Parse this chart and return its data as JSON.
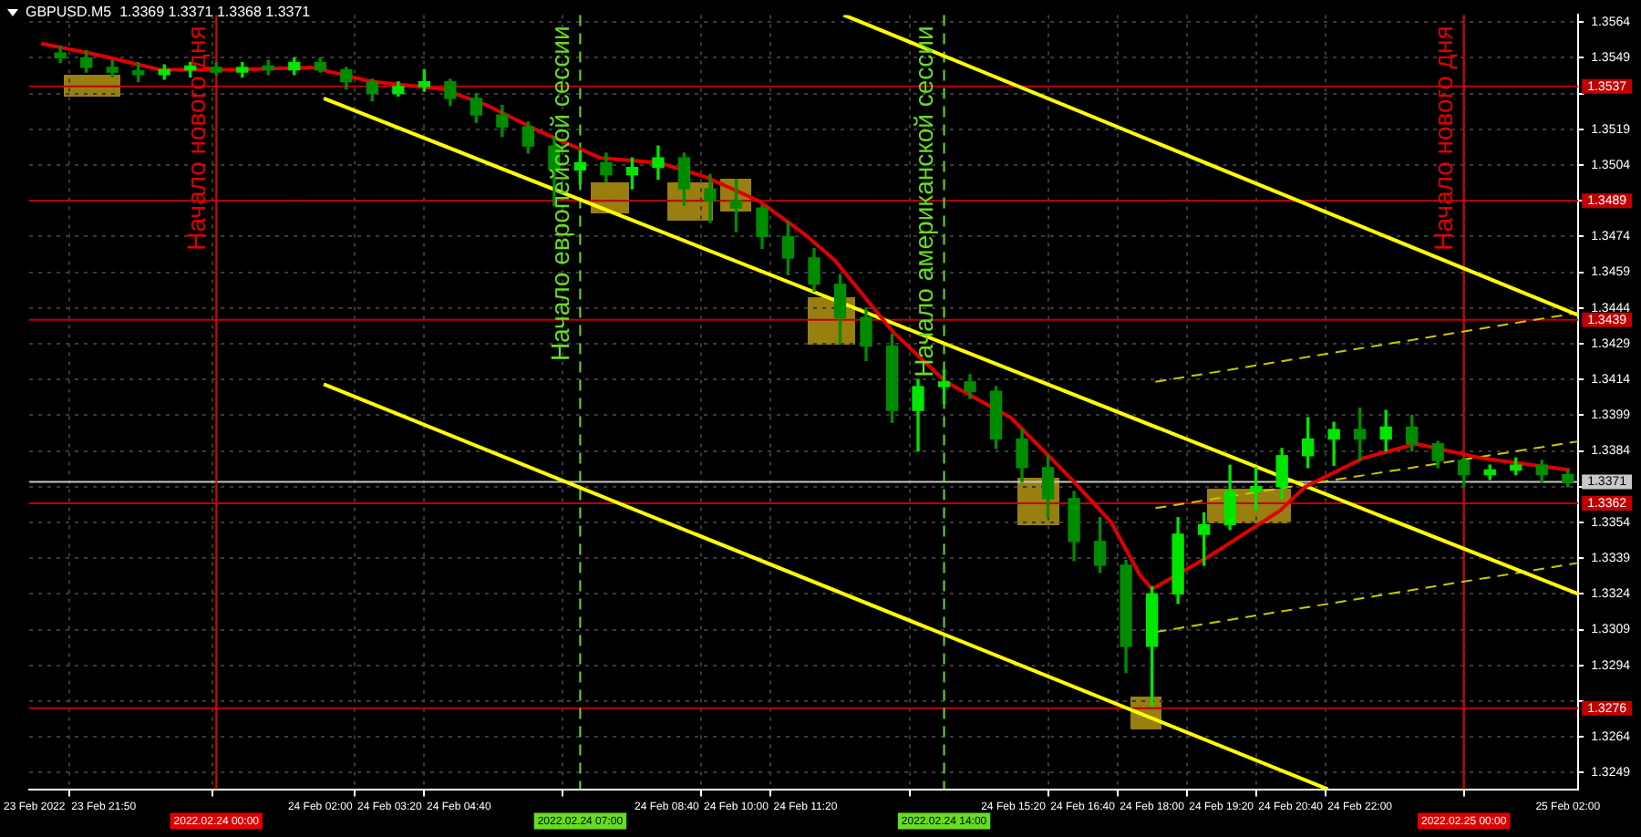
{
  "chart_data": {
    "type": "candlestick",
    "title": "GBPUSD.M5  1.3369 1.3371 1.3368 1.3371",
    "colors": [
      "#008c00",
      "#008c00",
      "#008c00",
      "#008c00",
      "#00e600",
      "#00e600",
      "#008c00",
      "#00e600",
      "#008c00",
      "#00e600",
      "#008c00",
      "#008c00",
      "#008c00",
      "#00e600",
      "#00e600",
      "#008c00",
      "#008c00",
      "#008c00",
      "#008c00",
      "#008c00",
      "#00e600",
      "#008c00",
      "#00e600",
      "#00e600",
      "#008c00",
      "#008c00",
      "#008c00",
      "#008c00",
      "#008c00",
      "#008c00",
      "#008c00",
      "#008c00",
      "#008c00",
      "#00e600",
      "#00e600",
      "#008c00",
      "#008c00",
      "#008c00",
      "#008c00",
      "#008c00",
      "#008c00",
      "#008c00",
      "#00e600",
      "#00e600",
      "#00e600",
      "#00e600",
      "#00e600",
      "#00e600",
      "#00e600",
      "#00e600",
      "#008c00",
      "#00e600",
      "#008c00",
      "#008c00",
      "#008c00",
      "#00e600",
      "#00e600",
      "#008c00",
      "#008c00"
    ],
    "marker": "none",
    "grid": true,
    "legend": false,
    "x": [
      "2022-02-23T21:00",
      "2022-02-23T21:30",
      "2022-02-23T22:00",
      "2022-02-23T22:30",
      "2022-02-23T23:00",
      "2022-02-23T23:30",
      "2022-02-24T00:00",
      "2022-02-24T00:30",
      "2022-02-24T01:00",
      "2022-02-24T01:30",
      "2022-02-24T02:00",
      "2022-02-24T02:30",
      "2022-02-24T03:00",
      "2022-02-24T03:30",
      "2022-02-24T04:00",
      "2022-02-24T04:30",
      "2022-02-24T05:00",
      "2022-02-24T05:30",
      "2022-02-24T06:00",
      "2022-02-24T06:30",
      "2022-02-24T07:00",
      "2022-02-24T07:30",
      "2022-02-24T08:00",
      "2022-02-24T08:30",
      "2022-02-24T09:00",
      "2022-02-24T09:30",
      "2022-02-24T10:00",
      "2022-02-24T10:30",
      "2022-02-24T11:00",
      "2022-02-24T11:30",
      "2022-02-24T12:00",
      "2022-02-24T12:30",
      "2022-02-24T13:00",
      "2022-02-24T13:30",
      "2022-02-24T14:00",
      "2022-02-24T14:30",
      "2022-02-24T15:00",
      "2022-02-24T15:30",
      "2022-02-24T16:00",
      "2022-02-24T16:30",
      "2022-02-24T17:00",
      "2022-02-24T17:30",
      "2022-02-24T18:00",
      "2022-02-24T18:30",
      "2022-02-24T19:00",
      "2022-02-24T19:30",
      "2022-02-24T20:00",
      "2022-02-24T20:30",
      "2022-02-24T21:00",
      "2022-02-24T21:30",
      "2022-02-24T22:00",
      "2022-02-24T22:30",
      "2022-02-24T23:00",
      "2022-02-24T23:30",
      "2022-02-25T00:00",
      "2022-02-25T00:30",
      "2022-02-25T01:00",
      "2022-02-25T01:30",
      "2022-02-25T02:00"
    ],
    "ohlc": [
      [
        1.3551,
        1.3554,
        1.3547,
        1.3549
      ],
      [
        1.3549,
        1.3552,
        1.3543,
        1.3545
      ],
      [
        1.3545,
        1.3548,
        1.3541,
        1.3543
      ],
      [
        1.3543,
        1.3547,
        1.3539,
        1.3542
      ],
      [
        1.3542,
        1.3546,
        1.354,
        1.3544
      ],
      [
        1.3544,
        1.3547,
        1.3541,
        1.3545
      ],
      [
        1.3545,
        1.3547,
        1.3542,
        1.3543
      ],
      [
        1.3543,
        1.3547,
        1.3541,
        1.3545
      ],
      [
        1.3545,
        1.3548,
        1.3542,
        1.3544
      ],
      [
        1.3544,
        1.3549,
        1.3542,
        1.3547
      ],
      [
        1.3547,
        1.3549,
        1.3543,
        1.3544
      ],
      [
        1.3544,
        1.3545,
        1.3536,
        1.3539
      ],
      [
        1.3539,
        1.354,
        1.3531,
        1.3534
      ],
      [
        1.3534,
        1.3539,
        1.3533,
        1.3537
      ],
      [
        1.3537,
        1.3544,
        1.3535,
        1.3539
      ],
      [
        1.3539,
        1.354,
        1.3529,
        1.3532
      ],
      [
        1.3532,
        1.3534,
        1.3522,
        1.3525
      ],
      [
        1.3525,
        1.3529,
        1.3516,
        1.352
      ],
      [
        1.352,
        1.3522,
        1.3509,
        1.3512
      ],
      [
        1.3512,
        1.3516,
        1.3487,
        1.3502
      ],
      [
        1.3502,
        1.351,
        1.3496,
        1.3505
      ],
      [
        1.3505,
        1.3509,
        1.3497,
        1.35
      ],
      [
        1.35,
        1.3507,
        1.3494,
        1.3503
      ],
      [
        1.3503,
        1.3512,
        1.3498,
        1.3507
      ],
      [
        1.3507,
        1.3509,
        1.3487,
        1.3494
      ],
      [
        1.3494,
        1.35,
        1.348,
        1.3489
      ],
      [
        1.3489,
        1.3498,
        1.3476,
        1.3486
      ],
      [
        1.3486,
        1.3487,
        1.3469,
        1.3474
      ],
      [
        1.3474,
        1.348,
        1.3458,
        1.3465
      ],
      [
        1.3465,
        1.3469,
        1.3451,
        1.3454
      ],
      [
        1.3454,
        1.3458,
        1.3429,
        1.344
      ],
      [
        1.344,
        1.3444,
        1.3422,
        1.3428
      ],
      [
        1.3428,
        1.3433,
        1.3396,
        1.3401
      ],
      [
        1.3401,
        1.3414,
        1.3384,
        1.3411
      ],
      [
        1.3411,
        1.3418,
        1.3404,
        1.3413
      ],
      [
        1.3413,
        1.3416,
        1.3406,
        1.3409
      ],
      [
        1.3409,
        1.3411,
        1.3385,
        1.3389
      ],
      [
        1.3389,
        1.3393,
        1.3371,
        1.3377
      ],
      [
        1.3377,
        1.3382,
        1.3356,
        1.3364
      ],
      [
        1.3364,
        1.3367,
        1.3338,
        1.3346
      ],
      [
        1.3346,
        1.3356,
        1.3333,
        1.3336
      ],
      [
        1.3336,
        1.3338,
        1.3291,
        1.3302
      ],
      [
        1.3302,
        1.3327,
        1.3277,
        1.3324
      ],
      [
        1.3324,
        1.3356,
        1.332,
        1.3349
      ],
      [
        1.3349,
        1.3358,
        1.3336,
        1.3353
      ],
      [
        1.3353,
        1.3378,
        1.3351,
        1.3367
      ],
      [
        1.3367,
        1.3377,
        1.3359,
        1.3369
      ],
      [
        1.3369,
        1.3385,
        1.3364,
        1.3382
      ],
      [
        1.3382,
        1.3398,
        1.3377,
        1.3389
      ],
      [
        1.3389,
        1.3396,
        1.3378,
        1.3393
      ],
      [
        1.3393,
        1.3402,
        1.338,
        1.3389
      ],
      [
        1.3389,
        1.3401,
        1.3384,
        1.3394
      ],
      [
        1.3394,
        1.3399,
        1.3384,
        1.3387
      ],
      [
        1.3387,
        1.3388,
        1.3377,
        1.338
      ],
      [
        1.338,
        1.3381,
        1.3369,
        1.3374
      ],
      [
        1.3374,
        1.3378,
        1.3372,
        1.3376
      ],
      [
        1.3376,
        1.3381,
        1.3374,
        1.3378
      ],
      [
        1.3378,
        1.338,
        1.3371,
        1.3374
      ],
      [
        1.3374,
        1.3376,
        1.3369,
        1.3371
      ]
    ],
    "series": [
      {
        "type": "line",
        "color": "#e00000",
        "x": [
          "2022-02-23T20:38",
          "2022-02-23T21:46",
          "2022-02-23T22:55",
          "2022-02-24T00:16",
          "2022-02-24T01:50",
          "2022-02-24T02:59",
          "2022-02-24T04:20",
          "2022-02-24T05:13",
          "2022-02-24T06:14",
          "2022-02-24T07:23",
          "2022-02-24T08:31",
          "2022-02-24T09:25",
          "2022-02-24T10:26",
          "2022-02-24T11:19",
          "2022-02-24T11:54",
          "2022-02-24T13:01",
          "2022-02-24T14:02",
          "2022-02-24T15:17",
          "2022-02-24T16:25",
          "2022-02-24T17:13",
          "2022-02-24T17:46",
          "2022-02-24T18:00",
          "2022-02-24T19:07",
          "2022-02-24T20:28",
          "2022-02-24T20:57",
          "2022-02-24T22:04",
          "2022-02-24T23:05",
          "2022-02-25T00:20",
          "2022-02-25T02:02"
        ],
        "values": [
          1.3555,
          1.355,
          1.3544,
          1.3544,
          1.3545,
          1.3539,
          1.3536,
          1.3529,
          1.3518,
          1.3507,
          1.3505,
          1.3499,
          1.3489,
          1.3475,
          1.3464,
          1.3434,
          1.3413,
          1.3398,
          1.3373,
          1.3354,
          1.3332,
          1.3326,
          1.334,
          1.3359,
          1.3369,
          1.3381,
          1.3387,
          1.3381,
          1.3376
        ]
      },
      {
        "type": "line",
        "color": "#ffff00",
        "line_style": "solid",
        "x": [
          "2022-02-24T02:04",
          "2022-02-25T02:12"
        ],
        "values": [
          1.3532,
          1.3324
        ]
      },
      {
        "type": "line",
        "color": "#ffff00",
        "line_style": "solid",
        "x": [
          "2022-02-24T02:04",
          "2022-02-24T21:23"
        ],
        "values": [
          1.3412,
          1.3242
        ]
      },
      {
        "type": "line",
        "color": "#ffff00",
        "line_style": "solid",
        "x": [
          "2022-02-24T12:04",
          "2022-02-25T02:12"
        ],
        "values": [
          1.3567,
          1.3441
        ]
      },
      {
        "type": "line",
        "color": "#c8c800",
        "line_style": "dashed",
        "x": [
          "2022-02-24T18:04",
          "2022-02-25T02:12"
        ],
        "values": [
          1.3413,
          1.3442
        ]
      },
      {
        "type": "line",
        "color": "#c8c800",
        "line_style": "dashed",
        "x": [
          "2022-02-24T18:04",
          "2022-02-25T02:12"
        ],
        "values": [
          1.336,
          1.3388
        ]
      },
      {
        "type": "line",
        "color": "#c8c800",
        "line_style": "dashed",
        "x": [
          "2022-02-24T18:04",
          "2022-02-25T02:12"
        ],
        "values": [
          1.3308,
          1.3337
        ]
      }
    ],
    "xlim": [
      "2022-02-23T20:24",
      "2022-02-25T02:12"
    ],
    "ylim": [
      1.3242,
      1.3567
    ],
    "xticks": [
      {
        "value": "2022-02-23T20:30",
        "label": "23 Feb 2022"
      },
      {
        "value": "2022-02-23T21:50",
        "label": "23 Feb 21:50"
      },
      {
        "value": "2022-02-24T02:00",
        "label": "24 Feb 02:00"
      },
      {
        "value": "2022-02-24T03:20",
        "label": "24 Feb 03:20"
      },
      {
        "value": "2022-02-24T04:40",
        "label": "24 Feb 04:40"
      },
      {
        "value": "2022-02-24T08:40",
        "label": "24 Feb 08:40"
      },
      {
        "value": "2022-02-24T10:00",
        "label": "24 Feb 10:00"
      },
      {
        "value": "2022-02-24T11:20",
        "label": "24 Feb 11:20"
      },
      {
        "value": "2022-02-24T15:20",
        "label": "24 Feb 15:20"
      },
      {
        "value": "2022-02-24T16:40",
        "label": "24 Feb 16:40"
      },
      {
        "value": "2022-02-24T18:00",
        "label": "24 Feb 18:00"
      },
      {
        "value": "2022-02-24T19:20",
        "label": "24 Feb 19:20"
      },
      {
        "value": "2022-02-24T20:40",
        "label": "24 Feb 20:40"
      },
      {
        "value": "2022-02-24T22:00",
        "label": "24 Feb 22:00"
      },
      {
        "value": "2022-02-25T02:00",
        "label": "25 Feb 02:00"
      }
    ],
    "yticks": [
      1.3249,
      1.3264,
      {
        "value": 1.3279,
        "label": null
      },
      1.3294,
      1.3309,
      1.3324,
      1.3339,
      1.3354,
      {
        "value": 1.3369,
        "label": null
      },
      1.3384,
      1.3399,
      1.3414,
      1.3429,
      1.3444,
      1.3459,
      1.3474,
      {
        "value": 1.3489,
        "label": null
      },
      1.3504,
      1.3519,
      {
        "value": 1.3534,
        "label": null
      },
      1.3549,
      1.3564
    ],
    "annotations": [
      "2022.02.24 00:00",
      "2022.02.24 07:00",
      "2022.02.24 14:00",
      "2022.02.25 00:00"
    ],
    "ref_lines": [
      {
        "axis": "y",
        "value": 1.3537,
        "label": "1.3537",
        "color": "#c00000"
      },
      {
        "axis": "y",
        "value": 1.3489,
        "label": "1.3489",
        "color": "#c00000"
      },
      {
        "axis": "y",
        "value": 1.3439,
        "label": "1.3439",
        "color": "#c00000"
      },
      {
        "axis": "y",
        "value": 1.3371,
        "label": "1.3371",
        "color": "#c8c8c8"
      },
      {
        "axis": "y",
        "value": 1.3362,
        "label": "1.3362",
        "color": "#c00000"
      },
      {
        "axis": "y",
        "value": 1.3276,
        "label": "1.3276",
        "color": "#c00000"
      },
      {
        "axis": "x",
        "value": "2022-02-24T00:00",
        "label": "Начало нового дня",
        "color": "#e00000",
        "line_style": "solid"
      },
      {
        "axis": "x",
        "value": "2022-02-24T07:00",
        "label": "Начало европейской сессии",
        "color": "#66dd22",
        "line_style": "dashed"
      },
      {
        "axis": "x",
        "value": "2022-02-24T14:00",
        "label": "Начало американской сессии",
        "color": "#66dd22",
        "line_style": "dashed"
      },
      {
        "axis": "x",
        "value": "2022-02-25T00:00",
        "label": "Начало нового дня",
        "color": "#e00000",
        "line_style": "solid"
      }
    ]
  }
}
